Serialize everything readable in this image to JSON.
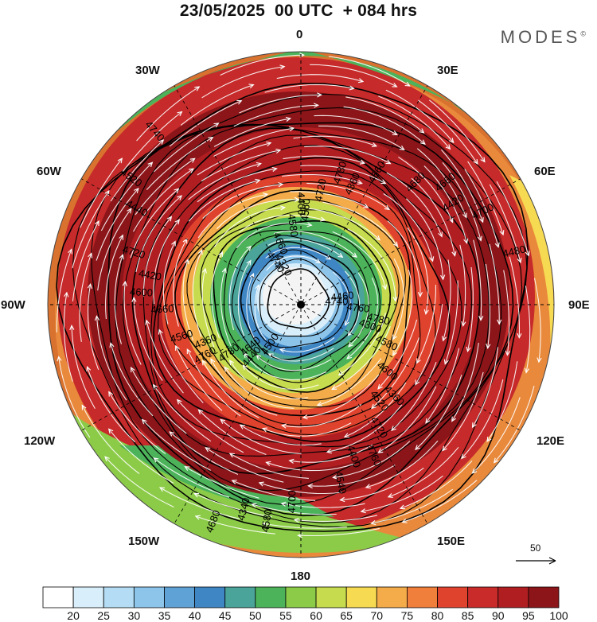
{
  "title": "23/05/2025  00 UTC  + 084 hrs",
  "brand": "MODES",
  "brand_mark": "©",
  "longitude_labels": {
    "top": "0",
    "top_left": "30W",
    "top_right": "30E",
    "upper_left": "60W",
    "upper_right": "60E",
    "left": "90W",
    "right": "90E",
    "lower_left": "120W",
    "lower_right": "120E",
    "bottom_left": "150W",
    "bottom_right": "150E",
    "bottom": "180"
  },
  "contour_labels": [
    "4740",
    "4640",
    "4560",
    "4520",
    "4420",
    "4420",
    "4340",
    "4320",
    "4300",
    "4360",
    "4360",
    "4400",
    "4440",
    "4480",
    "4500",
    "4580",
    "4600",
    "4660",
    "4680",
    "4700",
    "4740",
    "4760",
    "4780",
    "4720",
    "4720",
    "4720",
    "4700",
    "4680",
    "4660",
    "4580",
    "4560",
    "4560",
    "4540",
    "4520",
    "4460",
    "4440",
    "4400",
    "4360",
    "4600",
    "4660",
    "4580",
    "4740",
    "4780",
    "4760",
    "4780",
    "4760"
  ],
  "colorbar": {
    "ticks": [
      "20",
      "25",
      "30",
      "35",
      "40",
      "45",
      "50",
      "55",
      "60",
      "65",
      "70",
      "75",
      "80",
      "85",
      "90",
      "95",
      "100"
    ],
    "colors": [
      "#ffffff",
      "#d8eefa",
      "#b4dcf4",
      "#8cc4ea",
      "#5fa2d6",
      "#3f86c5",
      "#4aa49a",
      "#4cb35a",
      "#8ccb48",
      "#c6dc4e",
      "#f6da52",
      "#f4ac4a",
      "#f07f3b",
      "#e0432d",
      "#c92a2a",
      "#b01e22",
      "#8c1519"
    ]
  },
  "reference_vector_label": "50",
  "colors": {
    "background": "#ffffff",
    "contour": "#000000",
    "streamline": "#ffffff",
    "graticule": "#000000"
  }
}
